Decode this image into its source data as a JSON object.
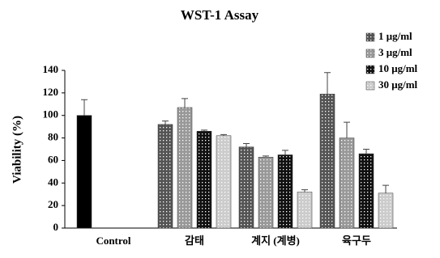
{
  "chart_data": {
    "type": "bar",
    "title": "WST-1 Assay",
    "y_label": "Viability  (%)",
    "categories": [
      "Control",
      "감태",
      "계지 (계병)",
      "육구두"
    ],
    "control": {
      "values": [
        100,
        null,
        null,
        null
      ],
      "errors": [
        14,
        null,
        null,
        null
      ],
      "color": "#000000"
    },
    "series": [
      {
        "name": "1 μg/ml",
        "color": "#555555",
        "values": [
          null,
          92,
          72,
          119
        ],
        "errors": [
          null,
          3,
          3,
          19
        ]
      },
      {
        "name": "3 μg/ml",
        "color": "#999999",
        "values": [
          null,
          107,
          63,
          80
        ],
        "errors": [
          null,
          8,
          1,
          14
        ]
      },
      {
        "name": "10 μg/ml",
        "color": "#111111",
        "values": [
          null,
          86,
          65,
          66
        ],
        "errors": [
          null,
          1,
          4,
          4
        ]
      },
      {
        "name": "30 μg/ml",
        "color": "#cccccc",
        "values": [
          null,
          82,
          32,
          31
        ],
        "errors": [
          null,
          1,
          2,
          7
        ]
      }
    ],
    "ylim": [
      0,
      140
    ],
    "yticks": [
      0,
      20,
      40,
      60,
      80,
      100,
      120,
      140
    ]
  }
}
